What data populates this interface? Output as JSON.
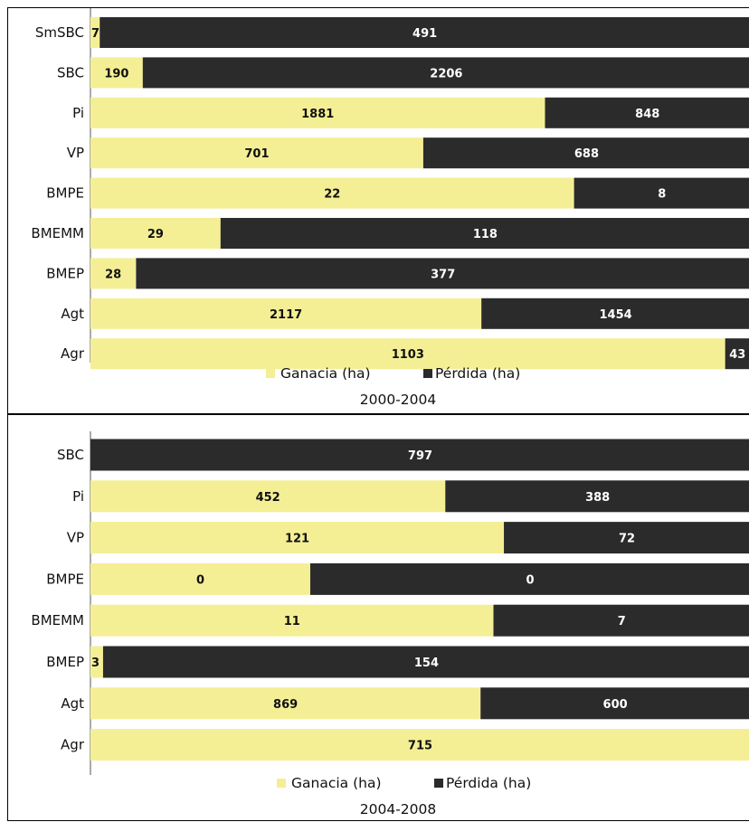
{
  "colors": {
    "gain": "#f4ef95",
    "loss": "#2b2b2b",
    "axis": "#555555"
  },
  "chart_data": [
    {
      "type": "bar",
      "orientation": "horizontal",
      "stacked": "100%",
      "period": "2000-2004",
      "legend": [
        "Ganacia (ha)",
        "Pérdida (ha)"
      ],
      "legend_position": "bottom",
      "categories": [
        "SmSBC",
        "SBC",
        "Pi",
        "VP",
        "BMPE",
        "BMEMM",
        "BMEP",
        "Agt",
        "Agr"
      ],
      "series": [
        {
          "name": "Ganacia (ha)",
          "values": [
            7,
            190,
            1881,
            701,
            22,
            29,
            28,
            2117,
            1103
          ]
        },
        {
          "name": "Pérdida (ha)",
          "values": [
            491,
            2206,
            848,
            688,
            8,
            118,
            377,
            1454,
            43
          ]
        }
      ]
    },
    {
      "type": "bar",
      "orientation": "horizontal",
      "stacked": "100%",
      "period": "2004-2008",
      "legend": [
        "Ganacia (ha)",
        "Pérdida (ha)"
      ],
      "legend_position": "bottom",
      "categories": [
        "SBC",
        "Pi",
        "VP",
        "BMPE",
        "BMEMM",
        "BMEP",
        "Agt",
        "Agr"
      ],
      "series": [
        {
          "name": "Ganacia (ha)",
          "values": [
            0,
            452,
            121,
            0,
            11,
            3,
            869,
            715
          ]
        },
        {
          "name": "Pérdida (ha)",
          "values": [
            797,
            388,
            72,
            0,
            7,
            154,
            600,
            null
          ]
        }
      ],
      "gain_share_override": {
        "SBC": 0.0,
        "BMPE": 0.3333
      }
    }
  ]
}
